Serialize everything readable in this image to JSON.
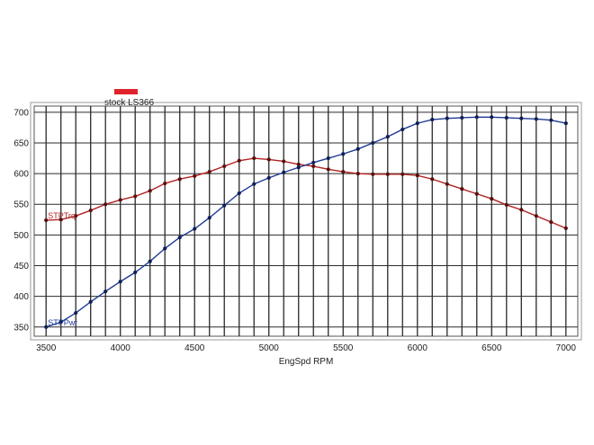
{
  "chart_data": {
    "type": "line",
    "title": "",
    "xlabel": "EngSpd RPM",
    "ylabel": "",
    "xlim": [
      3420,
      7080
    ],
    "ylim": [
      335,
      710
    ],
    "x_ticks": [
      3500,
      4000,
      4500,
      5000,
      5500,
      6000,
      6500,
      7000
    ],
    "y_ticks": [
      350,
      400,
      450,
      500,
      550,
      600,
      650,
      700
    ],
    "grid": true,
    "vertical_grid_step": 100,
    "legend": {
      "placement": "top-left",
      "entries": [
        {
          "label": "stock LS366",
          "color": "#e0222a"
        }
      ]
    },
    "x": [
      3500,
      3600,
      3700,
      3800,
      3900,
      4000,
      4100,
      4200,
      4300,
      4400,
      4500,
      4600,
      4700,
      4800,
      4900,
      5000,
      5100,
      5200,
      5300,
      5400,
      5500,
      5600,
      5700,
      5800,
      5900,
      6000,
      6100,
      6200,
      6300,
      6400,
      6500,
      6600,
      6700,
      6800,
      6900,
      7000
    ],
    "series": [
      {
        "name": "STPTrq",
        "color": "#b22222",
        "values": [
          524,
          525,
          531,
          540,
          550,
          557,
          563,
          572,
          584,
          591,
          596,
          603,
          612,
          621,
          625,
          623,
          620,
          615,
          612,
          607,
          603,
          600,
          599,
          599,
          599,
          597,
          591,
          583,
          575,
          567,
          559,
          549,
          541,
          531,
          521,
          511
        ]
      },
      {
        "name": "STPPwr",
        "color": "#1f3a93",
        "values": [
          350,
          358,
          373,
          391,
          408,
          424,
          439,
          457,
          478,
          496,
          510,
          528,
          548,
          568,
          583,
          593,
          602,
          610,
          618,
          625,
          632,
          640,
          650,
          660,
          672,
          682,
          688,
          690,
          691,
          692,
          692,
          691,
          690,
          689,
          687,
          682
        ]
      }
    ]
  }
}
